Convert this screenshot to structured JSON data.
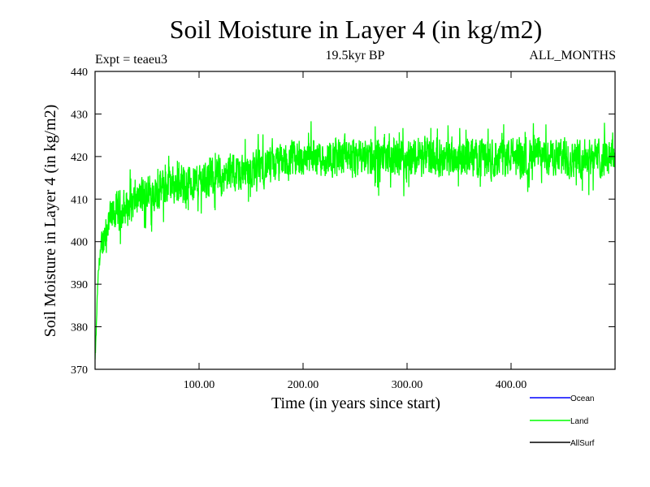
{
  "chart_data": {
    "type": "line",
    "title": "Soil Moisture in Layer 4 (in kg/m2)",
    "subtitle_left": "Expt = teaeu3",
    "subtitle_center": "19.5kyr BP",
    "subtitle_right": "ALL_MONTHS",
    "xlabel": "Time (in years since start)",
    "ylabel": "Soil Moisture in Layer 4 (in kg/m2)",
    "xlim": [
      0,
      500
    ],
    "ylim": [
      370,
      440
    ],
    "x_ticks": [
      100,
      200,
      300,
      400
    ],
    "x_tick_labels": [
      "100.00",
      "200.00",
      "300.00",
      "400.00"
    ],
    "y_ticks": [
      370,
      380,
      390,
      400,
      410,
      420,
      430,
      440
    ],
    "y_tick_labels": [
      "370",
      "380",
      "390",
      "400",
      "410",
      "420",
      "430",
      "440"
    ],
    "grid": false,
    "legend_position": "bottom-right",
    "series": [
      {
        "name": "Land",
        "color": "#00ff00",
        "x": [
          0,
          1,
          2,
          3,
          5,
          8,
          12,
          16,
          20,
          25,
          30,
          35,
          40,
          50,
          60,
          70,
          80,
          90,
          100,
          110,
          120,
          130,
          140,
          150,
          160,
          170,
          180,
          190,
          200,
          210,
          220,
          230,
          240,
          250,
          260,
          270,
          280,
          290,
          300,
          310,
          320,
          330,
          340,
          350,
          360,
          370,
          380,
          390,
          400,
          410,
          420,
          430,
          440,
          450,
          460,
          470,
          480,
          490,
          498
        ],
        "values": [
          372,
          378,
          386,
          392,
          397,
          401,
          404,
          406,
          407,
          407.5,
          408,
          409,
          410,
          411,
          412,
          413,
          413.5,
          414,
          414.5,
          415,
          415.5,
          416,
          416.5,
          417,
          417.5,
          418,
          418.5,
          419,
          419.5,
          420,
          420,
          420,
          420,
          420,
          420,
          420,
          420,
          420,
          420,
          420,
          420,
          420,
          420,
          420,
          420,
          420,
          420,
          420,
          420,
          420,
          420,
          420,
          420,
          420,
          420,
          420,
          420,
          420,
          421
        ],
        "variability_range": 8
      },
      {
        "name": "Ocean",
        "color": "#0000ff",
        "values": []
      },
      {
        "name": "AllSurf",
        "color": "#000000",
        "values": []
      }
    ]
  }
}
